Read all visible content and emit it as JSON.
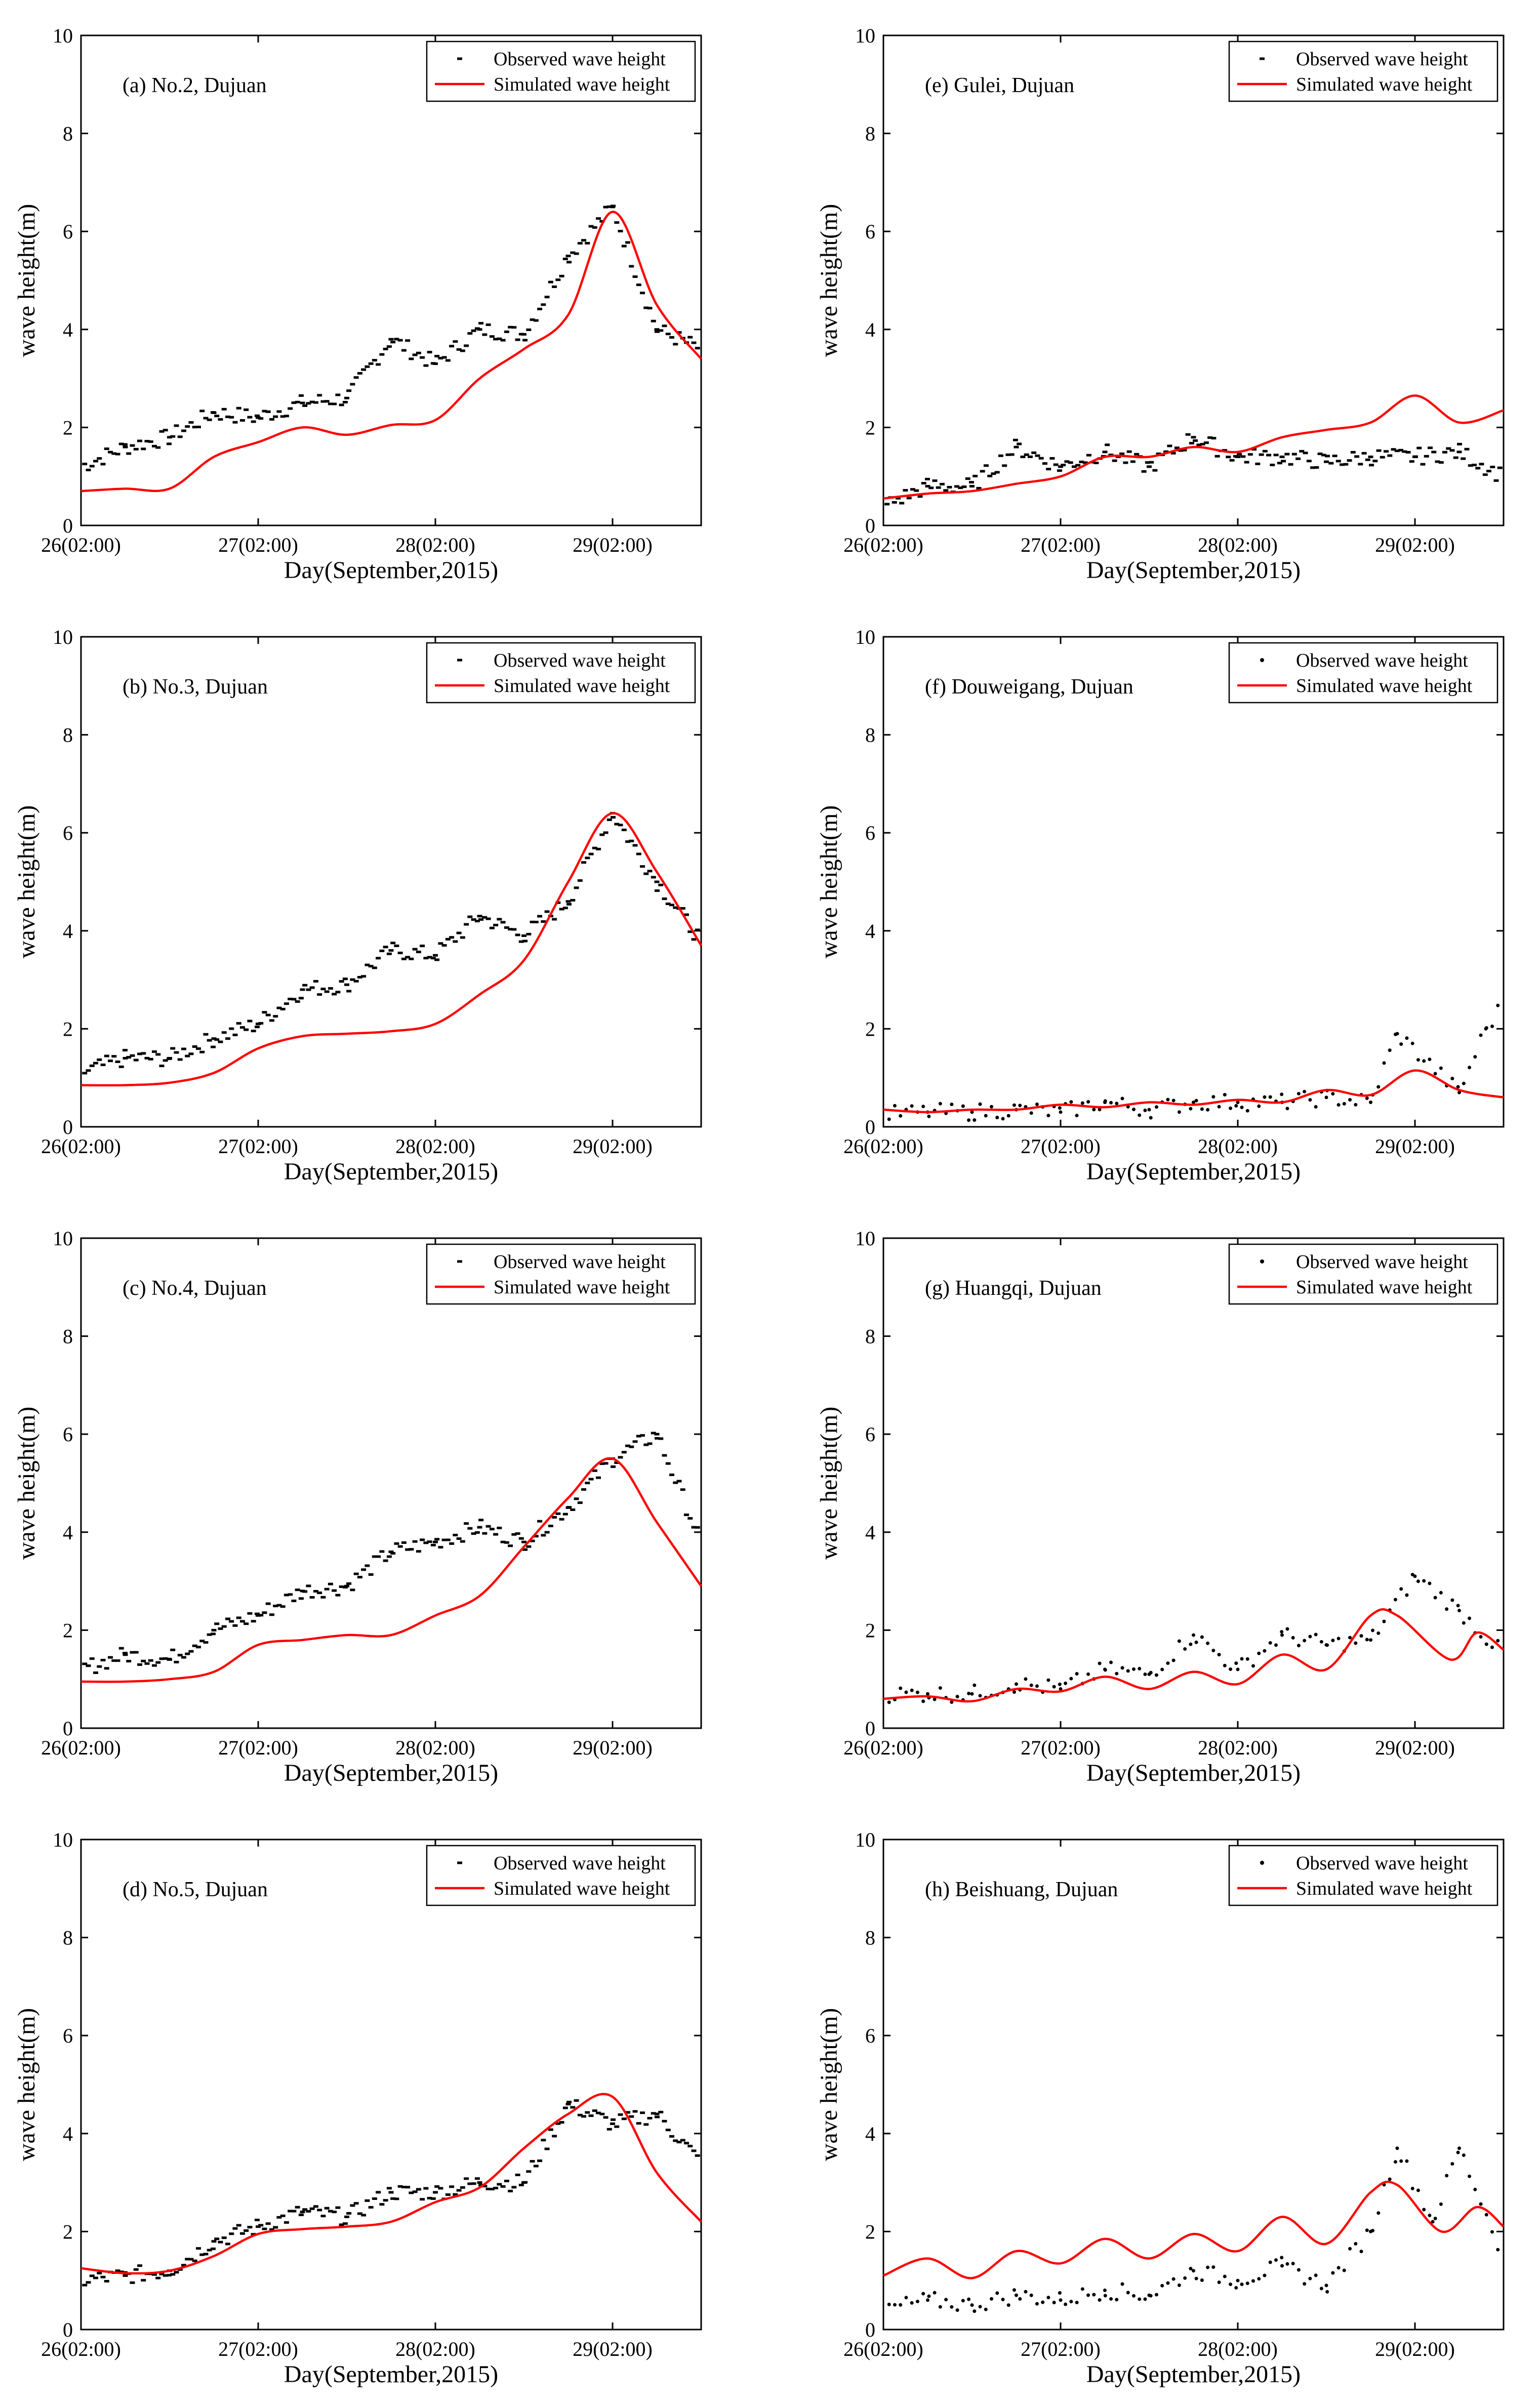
{
  "figure": {
    "xlabel": "Day(September,2015)",
    "ylabel": "wave height(m)",
    "legend_observed": "Observed wave height",
    "legend_simulated": "Simulated wave height",
    "colors": {
      "observed": "#000000",
      "simulated": "#ff0000",
      "axes": "#000000",
      "legend_border": "#000000"
    }
  },
  "chart_data": [
    {
      "id": "a",
      "title": "(a) No.2, Dujuan",
      "type": "line",
      "xlabel": "Day(September,2015)",
      "ylabel": "wave height(m)",
      "xlim": [
        0,
        3.5
      ],
      "ylim": [
        0,
        10
      ],
      "xticks": [
        0,
        1,
        2,
        3
      ],
      "xtick_labels": [
        "26(02:00)",
        "27(02:00)",
        "28(02:00)",
        "29(02:00)"
      ],
      "yticks": [
        0,
        2,
        4,
        6,
        8,
        10
      ],
      "legend": [
        "Observed wave height",
        "Simulated wave height"
      ],
      "legend_position": "top-right",
      "observed": {
        "name": "Observed wave height",
        "marker": "dash",
        "x": [
          0,
          0.25,
          0.5,
          0.75,
          1.0,
          1.25,
          1.5,
          1.75,
          2.0,
          2.25,
          2.5,
          2.75,
          3.0,
          3.25,
          3.5
        ],
        "y": [
          1.2,
          1.6,
          1.8,
          2.3,
          2.2,
          2.5,
          2.6,
          3.8,
          3.3,
          4.0,
          3.9,
          5.5,
          6.5,
          4.0,
          3.6
        ]
      },
      "simulated": {
        "name": "Simulated wave height",
        "x": [
          0,
          0.25,
          0.5,
          0.75,
          1.0,
          1.25,
          1.5,
          1.75,
          2.0,
          2.25,
          2.5,
          2.75,
          3.0,
          3.25,
          3.5
        ],
        "y": [
          0.7,
          0.75,
          0.75,
          1.4,
          1.7,
          2.0,
          1.85,
          2.05,
          2.15,
          3.0,
          3.6,
          4.3,
          6.4,
          4.5,
          3.4
        ]
      }
    },
    {
      "id": "b",
      "title": "(b) No.3, Dujuan",
      "type": "line",
      "xlabel": "Day(September,2015)",
      "ylabel": "wave height(m)",
      "xlim": [
        0,
        3.5
      ],
      "ylim": [
        0,
        10
      ],
      "xticks": [
        0,
        1,
        2,
        3
      ],
      "xtick_labels": [
        "26(02:00)",
        "27(02:00)",
        "28(02:00)",
        "29(02:00)"
      ],
      "yticks": [
        0,
        2,
        4,
        6,
        8,
        10
      ],
      "legend": [
        "Observed wave height",
        "Simulated wave height"
      ],
      "legend_position": "top-right",
      "observed": {
        "name": "Observed wave height",
        "marker": "dash",
        "x": [
          0,
          0.25,
          0.5,
          0.75,
          1.0,
          1.25,
          1.5,
          1.75,
          2.0,
          2.25,
          2.5,
          2.75,
          3.0,
          3.25,
          3.5
        ],
        "y": [
          1.1,
          1.4,
          1.4,
          1.8,
          2.1,
          2.8,
          2.9,
          3.6,
          3.5,
          4.3,
          3.9,
          4.6,
          6.4,
          5.0,
          3.8
        ]
      },
      "simulated": {
        "name": "Simulated wave height",
        "x": [
          0,
          0.25,
          0.5,
          0.75,
          1.0,
          1.25,
          1.5,
          1.75,
          2.0,
          2.25,
          2.5,
          2.75,
          3.0,
          3.25,
          3.5
        ],
        "y": [
          0.85,
          0.85,
          0.9,
          1.1,
          1.6,
          1.85,
          1.9,
          1.95,
          2.1,
          2.7,
          3.4,
          5.0,
          6.4,
          5.2,
          3.7
        ]
      }
    },
    {
      "id": "c",
      "title": "(c) No.4, Dujuan",
      "type": "line",
      "xlabel": "Day(September,2015)",
      "ylabel": "wave height(m)",
      "xlim": [
        0,
        3.5
      ],
      "ylim": [
        0,
        10
      ],
      "xticks": [
        0,
        1,
        2,
        3
      ],
      "xtick_labels": [
        "26(02:00)",
        "27(02:00)",
        "28(02:00)",
        "29(02:00)"
      ],
      "yticks": [
        0,
        2,
        4,
        6,
        8,
        10
      ],
      "legend": [
        "Observed wave height",
        "Simulated wave height"
      ],
      "legend_position": "top-right",
      "observed": {
        "name": "Observed wave height",
        "marker": "dash",
        "x": [
          0,
          0.25,
          0.5,
          0.75,
          1.0,
          1.25,
          1.5,
          1.75,
          2.0,
          2.25,
          2.5,
          2.75,
          3.0,
          3.25,
          3.5
        ],
        "y": [
          1.2,
          1.5,
          1.4,
          2.0,
          2.3,
          2.8,
          2.9,
          3.6,
          3.8,
          4.1,
          3.8,
          4.5,
          5.5,
          6.0,
          3.8
        ]
      },
      "simulated": {
        "name": "Simulated wave height",
        "x": [
          0,
          0.25,
          0.5,
          0.75,
          1.0,
          1.25,
          1.5,
          1.75,
          2.0,
          2.25,
          2.5,
          2.75,
          3.0,
          3.25,
          3.5
        ],
        "y": [
          0.95,
          0.95,
          1.0,
          1.15,
          1.7,
          1.8,
          1.9,
          1.9,
          2.3,
          2.7,
          3.7,
          4.7,
          5.5,
          4.2,
          2.9
        ]
      }
    },
    {
      "id": "d",
      "title": "(d) No.5, Dujuan",
      "type": "line",
      "xlabel": "Day(September,2015)",
      "ylabel": "wave height(m)",
      "xlim": [
        0,
        3.5
      ],
      "ylim": [
        0,
        10
      ],
      "xticks": [
        0,
        1,
        2,
        3
      ],
      "xtick_labels": [
        "26(02:00)",
        "27(02:00)",
        "28(02:00)",
        "29(02:00)"
      ],
      "yticks": [
        0,
        2,
        4,
        6,
        8,
        10
      ],
      "legend": [
        "Observed wave height",
        "Simulated wave height"
      ],
      "legend_position": "top-right",
      "observed": {
        "name": "Observed wave height",
        "marker": "dash",
        "x": [
          0,
          0.25,
          0.5,
          0.75,
          1.0,
          1.25,
          1.5,
          1.75,
          2.0,
          2.25,
          2.5,
          2.75,
          3.0,
          3.25,
          3.5
        ],
        "y": [
          1.0,
          1.1,
          1.2,
          1.8,
          2.1,
          2.4,
          2.3,
          2.8,
          2.8,
          3.0,
          3.0,
          4.6,
          4.2,
          4.4,
          3.4
        ]
      },
      "simulated": {
        "name": "Simulated wave height",
        "x": [
          0,
          0.25,
          0.5,
          0.75,
          1.0,
          1.25,
          1.5,
          1.75,
          2.0,
          2.25,
          2.5,
          2.75,
          3.0,
          3.25,
          3.5
        ],
        "y": [
          1.25,
          1.15,
          1.2,
          1.5,
          1.95,
          2.05,
          2.1,
          2.2,
          2.6,
          2.9,
          3.7,
          4.4,
          4.75,
          3.2,
          2.2
        ]
      }
    },
    {
      "id": "e",
      "title": "(e) Gulei, Dujuan",
      "type": "line",
      "xlabel": "Day(September,2015)",
      "ylabel": "wave height(m)",
      "xlim": [
        0,
        3.5
      ],
      "ylim": [
        0,
        10
      ],
      "xticks": [
        0,
        1,
        2,
        3
      ],
      "xtick_labels": [
        "26(02:00)",
        "27(02:00)",
        "28(02:00)",
        "29(02:00)"
      ],
      "yticks": [
        0,
        2,
        4,
        6,
        8,
        10
      ],
      "legend": [
        "Observed wave height",
        "Simulated wave height"
      ],
      "legend_position": "top-right",
      "observed": {
        "name": "Observed wave height",
        "marker": "dash",
        "x": [
          0,
          0.25,
          0.5,
          0.75,
          1.0,
          1.25,
          1.5,
          1.75,
          2.0,
          2.25,
          2.5,
          2.75,
          3.0,
          3.25,
          3.5
        ],
        "y": [
          0.4,
          0.8,
          0.8,
          1.6,
          1.2,
          1.5,
          1.2,
          1.8,
          1.4,
          1.4,
          1.3,
          1.4,
          1.4,
          1.5,
          1.0
        ]
      },
      "simulated": {
        "name": "Simulated wave height",
        "x": [
          0,
          0.25,
          0.5,
          0.75,
          1.0,
          1.25,
          1.5,
          1.75,
          2.0,
          2.25,
          2.5,
          2.75,
          3.0,
          3.25,
          3.5
        ],
        "y": [
          0.55,
          0.65,
          0.7,
          0.85,
          1.0,
          1.4,
          1.4,
          1.6,
          1.5,
          1.8,
          1.95,
          2.1,
          2.65,
          2.1,
          2.35
        ]
      }
    },
    {
      "id": "f",
      "title": "(f) Douweigang, Dujuan",
      "type": "line",
      "xlabel": "Day(September,2015)",
      "ylabel": "wave height(m)",
      "xlim": [
        0,
        3.5
      ],
      "ylim": [
        0,
        10
      ],
      "xticks": [
        0,
        1,
        2,
        3
      ],
      "xtick_labels": [
        "26(02:00)",
        "27(02:00)",
        "28(02:00)",
        "29(02:00)"
      ],
      "yticks": [
        0,
        2,
        4,
        6,
        8,
        10
      ],
      "legend": [
        "Observed wave height",
        "Simulated wave height"
      ],
      "legend_position": "top-right",
      "observed": {
        "name": "Observed wave height",
        "marker": "dot",
        "x": [
          0,
          0.25,
          0.5,
          0.75,
          1.0,
          1.25,
          1.5,
          1.75,
          2.0,
          2.25,
          2.5,
          2.75,
          2.9,
          3.25,
          3.4,
          3.5
        ],
        "y": [
          0.25,
          0.3,
          0.3,
          0.35,
          0.3,
          0.5,
          0.35,
          0.5,
          0.5,
          0.5,
          0.6,
          0.5,
          1.9,
          0.7,
          2.0,
          2.5
        ]
      },
      "simulated": {
        "name": "Simulated wave height",
        "x": [
          0,
          0.25,
          0.5,
          0.75,
          1.0,
          1.25,
          1.5,
          1.75,
          2.0,
          2.25,
          2.5,
          2.75,
          3.0,
          3.25,
          3.5
        ],
        "y": [
          0.35,
          0.3,
          0.35,
          0.35,
          0.45,
          0.4,
          0.5,
          0.45,
          0.55,
          0.5,
          0.75,
          0.65,
          1.15,
          0.75,
          0.6
        ]
      }
    },
    {
      "id": "g",
      "title": "(g) Huangqi, Dujuan",
      "type": "line",
      "xlabel": "Day(September,2015)",
      "ylabel": "wave height(m)",
      "xlim": [
        0,
        3.5
      ],
      "ylim": [
        0,
        10
      ],
      "xticks": [
        0,
        1,
        2,
        3
      ],
      "xtick_labels": [
        "26(02:00)",
        "27(02:00)",
        "28(02:00)",
        "29(02:00)"
      ],
      "yticks": [
        0,
        2,
        4,
        6,
        8,
        10
      ],
      "legend": [
        "Observed wave height",
        "Simulated wave height"
      ],
      "legend_position": "top-right",
      "observed": {
        "name": "Observed wave height",
        "marker": "dot",
        "x": [
          0,
          0.25,
          0.5,
          0.75,
          1.0,
          1.25,
          1.5,
          1.75,
          2.0,
          2.25,
          2.5,
          2.75,
          3.0,
          3.25,
          3.5
        ],
        "y": [
          0.7,
          0.7,
          0.7,
          0.9,
          0.8,
          1.2,
          1.1,
          1.9,
          1.2,
          1.9,
          1.7,
          1.8,
          3.1,
          2.4,
          1.5
        ]
      },
      "simulated": {
        "name": "Simulated wave height",
        "x": [
          0,
          0.25,
          0.5,
          0.75,
          1.0,
          1.25,
          1.5,
          1.75,
          2.0,
          2.25,
          2.5,
          2.75,
          2.9,
          3.2,
          3.35,
          3.5
        ],
        "y": [
          0.6,
          0.65,
          0.55,
          0.8,
          0.75,
          1.05,
          0.8,
          1.15,
          0.9,
          1.5,
          1.2,
          2.3,
          2.3,
          1.4,
          1.95,
          1.6
        ]
      }
    },
    {
      "id": "h",
      "title": "(h) Beishuang, Dujuan",
      "type": "line",
      "xlabel": "Day(September,2015)",
      "ylabel": "wave height(m)",
      "xlim": [
        0,
        3.5
      ],
      "ylim": [
        0,
        10
      ],
      "xticks": [
        0,
        1,
        2,
        3
      ],
      "xtick_labels": [
        "26(02:00)",
        "27(02:00)",
        "28(02:00)",
        "29(02:00)"
      ],
      "yticks": [
        0,
        2,
        4,
        6,
        8,
        10
      ],
      "legend": [
        "Observed wave height",
        "Simulated wave height"
      ],
      "legend_position": "top-right",
      "observed": {
        "name": "Observed wave height",
        "marker": "dot",
        "x": [
          0,
          0.25,
          0.5,
          0.75,
          1.0,
          1.25,
          1.5,
          1.75,
          2.0,
          2.25,
          2.5,
          2.75,
          2.9,
          3.1,
          3.25,
          3.5
        ],
        "y": [
          0.4,
          0.6,
          0.5,
          0.7,
          0.6,
          0.8,
          0.7,
          1.2,
          1.0,
          1.3,
          0.9,
          2.0,
          3.7,
          2.2,
          3.7,
          1.5
        ]
      },
      "simulated": {
        "name": "Simulated wave height",
        "x": [
          0,
          0.25,
          0.5,
          0.75,
          1.0,
          1.25,
          1.5,
          1.75,
          2.0,
          2.25,
          2.5,
          2.75,
          2.9,
          3.15,
          3.35,
          3.5
        ],
        "y": [
          1.1,
          1.45,
          1.05,
          1.6,
          1.35,
          1.85,
          1.45,
          1.95,
          1.6,
          2.3,
          1.75,
          2.8,
          2.95,
          2.0,
          2.5,
          2.1
        ]
      }
    }
  ]
}
